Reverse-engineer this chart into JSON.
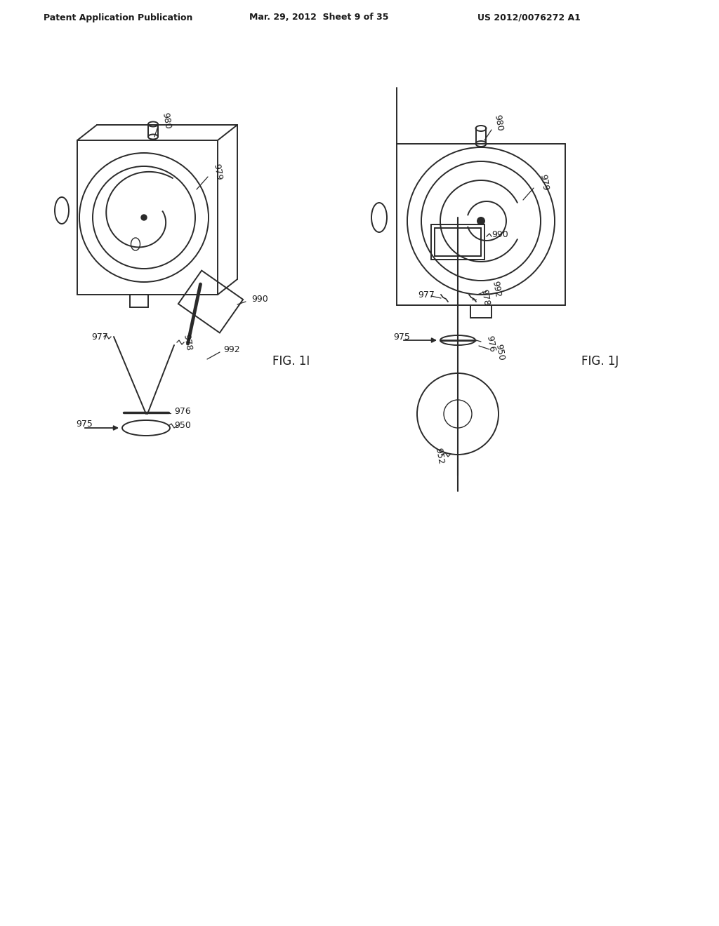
{
  "bg_color": "#ffffff",
  "header_left": "Patent Application Publication",
  "header_mid": "Mar. 29, 2012  Sheet 9 of 35",
  "header_right": "US 2012/0076272 A1",
  "fig1i_label": "FIG. 1I",
  "fig1j_label": "FIG. 1J",
  "line_color": "#2a2a2a",
  "text_color": "#1a1a1a",
  "lw": 1.4
}
